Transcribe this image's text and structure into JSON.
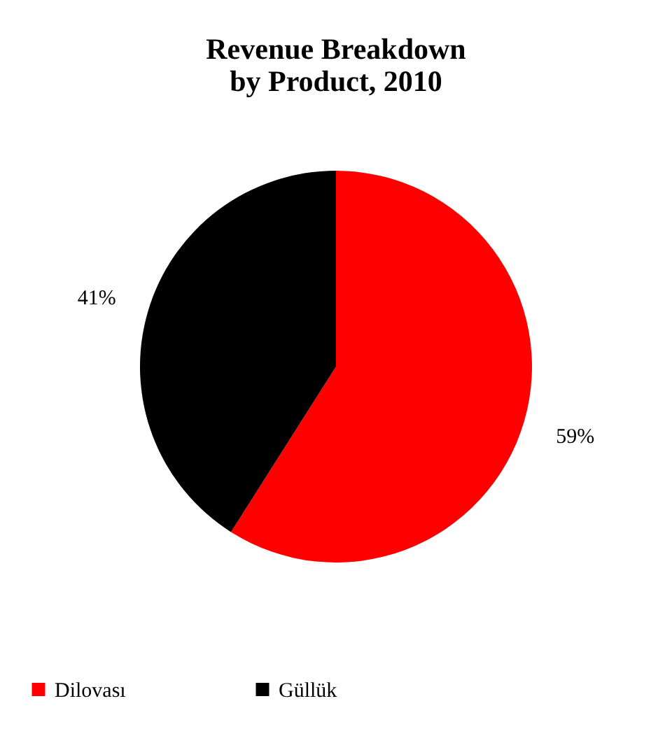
{
  "chart_data": {
    "type": "pie",
    "title": "Revenue Breakdown by Product, 2010",
    "categories": [
      "Dilovası",
      "Güllük"
    ],
    "values": [
      59,
      41
    ],
    "colors": [
      "#ff0000",
      "#000000"
    ],
    "value_labels": [
      "59%",
      "41%"
    ],
    "legend": "bottom"
  }
}
